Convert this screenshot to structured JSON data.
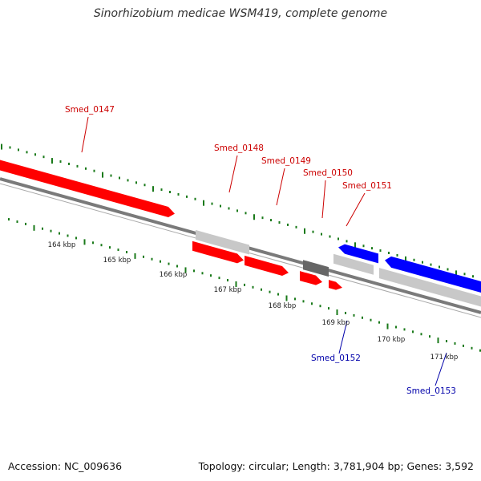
{
  "map": {
    "title": "Sinorhizobium medicae WSM419, complete genome",
    "accession": "Accession: NC_009636",
    "summary": "Topology: circular; Length: 3,781,904 bp; Genes: 3,592"
  },
  "colors": {
    "forward_gene": "#ff0000",
    "reverse_gene": "#0000ff",
    "forward_label": "#cc0000",
    "reverse_label": "#0000aa",
    "pseudo_gene": "#c8c8c8",
    "dark_feature": "#666666",
    "backbone": "#808080",
    "tick": "#1a7a1a"
  },
  "scale_labels": [
    "164 kbp",
    "165 kbp",
    "166 kbp",
    "167 kbp",
    "168 kbp",
    "169 kbp",
    "170 kbp",
    "171 kbp"
  ],
  "genes": [
    {
      "label": "Smed_0147",
      "strand": "forward"
    },
    {
      "label": "Smed_0148",
      "strand": "forward"
    },
    {
      "label": "Smed_0149",
      "strand": "forward"
    },
    {
      "label": "Smed_0150",
      "strand": "forward"
    },
    {
      "label": "Smed_0151",
      "strand": "forward"
    },
    {
      "label": "Smed_0152",
      "strand": "reverse"
    },
    {
      "label": "Smed_0153",
      "strand": "reverse"
    }
  ]
}
